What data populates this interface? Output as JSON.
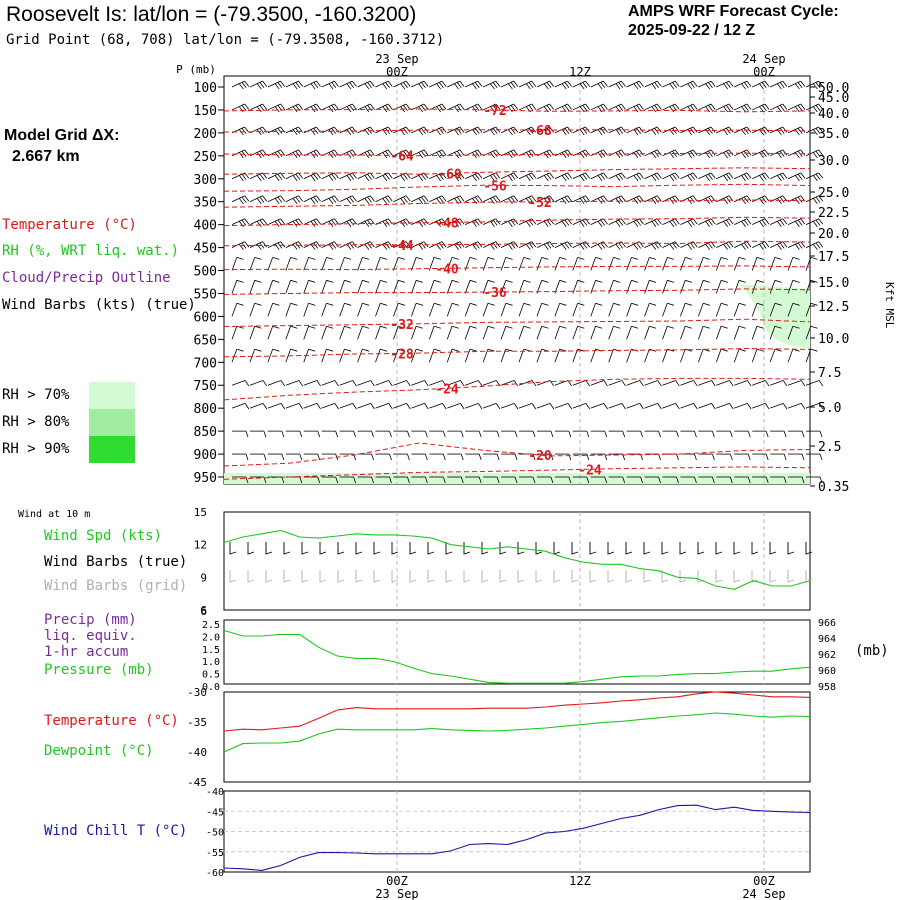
{
  "header": {
    "title": "Roosevelt Is:  lat/lon = (-79.3500, -160.3200)",
    "subtitle": "Grid Point (68, 708) lat/lon = (-79.3508, -160.3712)",
    "cycle_line1": "AMPS WRF Forecast Cycle:",
    "cycle_line2": "2025-09-22 / 12  Z",
    "grid_label": "Model Grid ΔX:",
    "grid_value": "2.667 km"
  },
  "legend": {
    "temperature": "Temperature (°C)",
    "rh": "RH (%, WRT liq. wat.)",
    "cloud": "Cloud/Precip Outline",
    "wind": "Wind Barbs (kts) (true)",
    "rh70": "RH > 70%",
    "rh80": "RH > 80%",
    "rh90": "RH > 90%",
    "rh70_color": "#d4fad4",
    "rh80_color": "#a0eca0",
    "rh90_color": "#2fdc2f"
  },
  "panel_labels": {
    "wind_at_10m": "Wind at 10 m",
    "wind_spd": "Wind Spd (kts)",
    "wind_barbs_true": "Wind Barbs (true)",
    "wind_barbs_grid": "Wind Barbs (grid)",
    "precip": "Precip (mm)",
    "liq_equiv": "liq. equiv.",
    "accum": "1-hr accum",
    "pressure": "Pressure (mb)",
    "pressure_unit": "(mb)",
    "temperature": "Temperature (°C)",
    "dewpoint": "Dewpoint (°C)",
    "wind_chill": "Wind Chill T (°C)"
  },
  "colors": {
    "temperature": "#e01818",
    "green": "#1ec81e",
    "cloud": "#7a2a9a",
    "grey": "#b0b0b0",
    "windchill": "#1818a8"
  },
  "chart_data": [
    {
      "type": "line",
      "panel": "time-height cross section",
      "ylabel": "P (mb)",
      "right_label": "Kft MSL",
      "y_ticks": [
        "100",
        "150",
        "200",
        "250",
        "300",
        "350",
        "400",
        "450",
        "500",
        "550",
        "600",
        "650",
        "700",
        "750",
        "800",
        "850",
        "900",
        "950"
      ],
      "right_ticks": [
        "50.0",
        "45.0",
        "40.0",
        "35.0",
        "30.0",
        "25.0",
        "22.5",
        "20.0",
        "17.5",
        "15.0",
        "12.5",
        "10.0",
        "7.5",
        "5.0",
        "2.5",
        "0.35"
      ],
      "top_dates": [
        "23 Sep",
        "24 Sep"
      ],
      "time_ticks": [
        "00Z",
        "12Z",
        "00Z"
      ],
      "isotherm_labels": [
        "-72",
        "-68",
        "-64",
        "-60",
        "-56",
        "-52",
        "-48",
        "-44",
        "-40",
        "-36",
        "-32",
        "-28",
        "-24",
        "-20",
        "-24"
      ],
      "isotherms": [
        {
          "label": "-72",
          "levels": [
            152,
            150,
            149,
            148,
            150,
            153,
            152,
            151,
            154,
            152
          ]
        },
        {
          "label": "-68",
          "levels": [
            198,
            197,
            196,
            194,
            193,
            194,
            193,
            195,
            194,
            196
          ]
        },
        {
          "label": "-64",
          "levels": [
            246,
            248,
            248,
            250,
            248,
            247,
            246,
            245,
            244,
            246
          ]
        },
        {
          "label": "-60",
          "levels": [
            290,
            288,
            287,
            290,
            286,
            283,
            280,
            278,
            276,
            278
          ]
        },
        {
          "label": "-56",
          "levels": [
            327,
            326,
            323,
            318,
            314,
            315,
            317,
            314,
            312,
            315
          ]
        },
        {
          "label": "-52",
          "levels": [
            362,
            360,
            358,
            354,
            351,
            350,
            349,
            348,
            346,
            348
          ]
        },
        {
          "label": "-48",
          "levels": [
            402,
            400,
            398,
            396,
            394,
            390,
            388,
            387,
            384,
            386
          ]
        },
        {
          "label": "-44",
          "levels": [
            446,
            445,
            444,
            444,
            443,
            441,
            440,
            441,
            436,
            438
          ]
        },
        {
          "label": "-40",
          "levels": [
            498,
            497,
            498,
            496,
            494,
            492,
            491,
            491,
            490,
            492
          ]
        },
        {
          "label": "-36",
          "levels": [
            552,
            550,
            548,
            548,
            547,
            546,
            544,
            543,
            540,
            542
          ]
        },
        {
          "label": "-32",
          "levels": [
            622,
            620,
            618,
            616,
            613,
            612,
            611,
            610,
            606,
            612
          ]
        },
        {
          "label": "-28",
          "levels": [
            688,
            686,
            682,
            680,
            676,
            676,
            674,
            673,
            670,
            672
          ]
        },
        {
          "label": "-24",
          "levels": [
            782,
            772,
            765,
            760,
            752,
            742,
            737,
            735,
            735,
            737
          ]
        },
        {
          "label": "-20",
          "levels": [
            926,
            920,
            902,
            876,
            892,
            904,
            902,
            900,
            892,
            890
          ]
        },
        {
          "label": "-24",
          "levels": [
            955,
            950,
            945,
            940,
            938,
            935,
            932,
            930,
            928,
            930
          ]
        }
      ],
      "rh_region": {
        "range": ">70%",
        "time_fraction_start": 0.88,
        "levels": [
          530,
          670
        ]
      }
    },
    {
      "type": "line",
      "panel": "10 m wind speed",
      "y_ticks": [
        "15",
        "12",
        "9",
        "6"
      ],
      "ylim": [
        6,
        15
      ],
      "series": [
        {
          "name": "Wind Spd (kts)",
          "values": [
            12.2,
            12.7,
            13.0,
            13.3,
            12.7,
            12.6,
            12.8,
            13.0,
            12.9,
            12.9,
            12.8,
            12.6,
            12.0,
            11.8,
            11.6,
            11.8,
            11.6,
            11.4,
            10.8,
            10.4,
            10.2,
            10.2,
            9.8,
            9.6,
            9.0,
            8.9,
            8.2,
            7.9,
            8.7,
            8.2,
            8.2,
            8.7
          ]
        }
      ]
    },
    {
      "type": "line",
      "panel": "precip and pressure",
      "y_ticks_left": [
        "2.5",
        "2.0",
        "1.5",
        "1.0",
        "0.5",
        "0.0"
      ],
      "y_ticks_right": [
        "966",
        "964",
        "962",
        "960",
        "958"
      ],
      "ylim": [
        958,
        966
      ],
      "series": [
        {
          "name": "Pressure (mb)",
          "values": [
            964.7,
            964.0,
            964.0,
            964.2,
            964.2,
            962.6,
            961.5,
            961.2,
            961.2,
            960.8,
            960.0,
            959.3,
            959.0,
            958.6,
            958.2,
            958.1,
            958.1,
            958.1,
            958.1,
            958.3,
            958.6,
            958.9,
            959.0,
            959.0,
            959.2,
            959.3,
            959.3,
            959.5,
            959.6,
            959.6,
            959.9,
            960.1
          ]
        }
      ]
    },
    {
      "type": "line",
      "panel": "temperature and dewpoint",
      "y_ticks": [
        "-30",
        "-35",
        "-40",
        "-45"
      ],
      "ylim": [
        -45,
        -30
      ],
      "series": [
        {
          "name": "Temperature (°C)",
          "values": [
            -36.5,
            -36.2,
            -36.3,
            -36.0,
            -35.7,
            -34.4,
            -33.0,
            -32.6,
            -32.8,
            -32.8,
            -32.8,
            -32.8,
            -32.8,
            -32.8,
            -32.7,
            -32.7,
            -32.7,
            -32.5,
            -32.2,
            -32.0,
            -31.8,
            -31.5,
            -31.3,
            -31.0,
            -30.8,
            -30.3,
            -30.0,
            -30.2,
            -30.5,
            -30.8,
            -30.8,
            -30.9
          ]
        },
        {
          "name": "Dewpoint (°C)",
          "values": [
            -40.0,
            -38.6,
            -38.5,
            -38.5,
            -38.2,
            -37.0,
            -36.2,
            -36.3,
            -36.3,
            -36.3,
            -36.3,
            -36.1,
            -36.3,
            -36.4,
            -36.5,
            -36.4,
            -36.2,
            -36.0,
            -35.7,
            -35.4,
            -35.1,
            -34.9,
            -34.6,
            -34.3,
            -34.0,
            -33.8,
            -33.5,
            -33.7,
            -34.0,
            -34.2,
            -34.0,
            -34.1
          ]
        }
      ]
    },
    {
      "type": "line",
      "panel": "wind chill",
      "y_ticks": [
        "-40",
        "-45",
        "-50",
        "-55",
        "-60"
      ],
      "ylim": [
        -60,
        -40
      ],
      "series": [
        {
          "name": "Wind Chill T (°C)",
          "values": [
            -59.0,
            -59.2,
            -59.6,
            -58.4,
            -56.4,
            -55.2,
            -55.2,
            -55.3,
            -55.5,
            -55.5,
            -55.5,
            -55.5,
            -54.8,
            -53.2,
            -53.0,
            -53.2,
            -52.0,
            -50.4,
            -50.0,
            -49.2,
            -48.0,
            -46.8,
            -46.0,
            -44.6,
            -43.6,
            -43.5,
            -44.6,
            -44.0,
            -44.8,
            -45.0,
            -45.2,
            -45.3
          ]
        }
      ]
    }
  ],
  "axis": {
    "bottom_time": [
      "00Z",
      "12Z",
      "00Z"
    ],
    "bottom_dates": [
      "23 Sep",
      "24 Sep"
    ]
  }
}
